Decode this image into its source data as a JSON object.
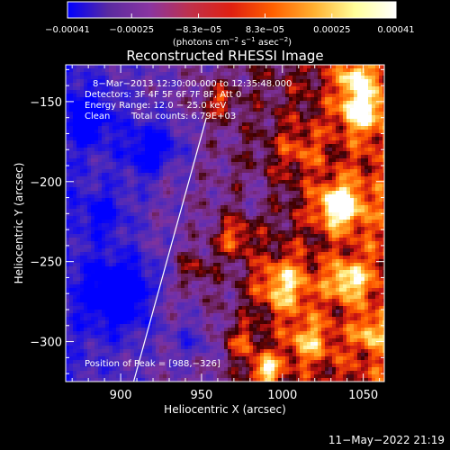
{
  "chart_data": {
    "type": "heatmap",
    "title": "Reconstructed RHESSI Image",
    "xlabel": "Heliocentric X (arcsec)",
    "ylabel": "Heliocentric Y (arcsec)",
    "xlim": [
      866,
      1063
    ],
    "ylim": [
      -325,
      -127
    ],
    "x_ticks": [
      900,
      950,
      1000,
      1050
    ],
    "y_ticks": [
      -300,
      -250,
      -200,
      -150
    ],
    "x_tick_labels": [
      "900",
      "950",
      "1000",
      "1050"
    ],
    "y_tick_labels": [
      "−300",
      "−250",
      "−200",
      "−150"
    ],
    "grid": false,
    "limb_line": [
      [
        908,
        -325
      ],
      [
        953,
        -160
      ]
    ],
    "colorbar": {
      "min": -0.00041,
      "max": 0.00041,
      "tick_values": [
        -0.00041,
        -0.00025,
        -8.3e-05,
        8.3e-05,
        0.00025,
        0.00041
      ],
      "tick_labels": [
        "−0.00041",
        "−0.00025",
        "−8.3e−05",
        "8.3e−05",
        "0.00025",
        "0.00041"
      ],
      "units_prefix": "(photons cm",
      "units_sup1": "−2",
      "units_mid": " s",
      "units_sup2": "−1",
      "units_mid2": " asec",
      "units_sup3": "−2",
      "units_suffix": ")",
      "palette": [
        "#0000ff",
        "#5a2aa0",
        "#8a35a0",
        "#c0304a",
        "#e02010",
        "#ff6000",
        "#ffb030",
        "#ffff9a",
        "#ffffff"
      ]
    },
    "peak": {
      "x": 988,
      "y": -326
    },
    "annotations": {
      "time_range": "8−Mar−2013 12:30:00.000 to 12:35:48.000",
      "detectors": "Detectors: 3F 4F 5F 6F 7F 8F, Att 0",
      "energy_range": "Energy Range: 12.0 − 25.0 keV",
      "clean_label": "Clean",
      "total_counts": "Total counts: 6.79E+03",
      "peak_position": "Position of Peak = [988,−326]"
    },
    "hotspots": [
      {
        "x": 1035,
        "y": -215,
        "amp": 1.0,
        "r": 14
      },
      {
        "x": 1048,
        "y": -155,
        "amp": 0.85,
        "r": 13
      },
      {
        "x": 1045,
        "y": -135,
        "amp": 0.7,
        "r": 10
      },
      {
        "x": 1000,
        "y": -265,
        "amp": 0.8,
        "r": 18
      },
      {
        "x": 990,
        "y": -318,
        "amp": 0.95,
        "r": 10
      },
      {
        "x": 1040,
        "y": -262,
        "amp": 0.75,
        "r": 12
      },
      {
        "x": 970,
        "y": -235,
        "amp": 0.6,
        "r": 12
      },
      {
        "x": 960,
        "y": -150,
        "amp": 0.55,
        "r": 10
      },
      {
        "x": 1010,
        "y": -180,
        "amp": 0.35,
        "r": 15
      },
      {
        "x": 945,
        "y": -255,
        "amp": 0.45,
        "r": 11
      },
      {
        "x": 925,
        "y": -275,
        "amp": 0.35,
        "r": 8
      },
      {
        "x": 1015,
        "y": -300,
        "amp": 0.6,
        "r": 15
      },
      {
        "x": 1055,
        "y": -295,
        "amp": 0.5,
        "r": 10
      },
      {
        "x": 975,
        "y": -300,
        "amp": 0.5,
        "r": 11
      },
      {
        "x": 930,
        "y": -195,
        "amp": 0.3,
        "r": 7
      }
    ],
    "coldspots": [
      {
        "x": 900,
        "y": -270,
        "amp": 1.0,
        "r": 22
      },
      {
        "x": 920,
        "y": -180,
        "amp": 0.8,
        "r": 18
      },
      {
        "x": 880,
        "y": -160,
        "amp": 0.7,
        "r": 16
      },
      {
        "x": 890,
        "y": -220,
        "amp": 0.5,
        "r": 14
      },
      {
        "x": 945,
        "y": -300,
        "amp": 0.4,
        "r": 12
      },
      {
        "x": 985,
        "y": -210,
        "amp": 0.25,
        "r": 9
      }
    ]
  },
  "footer": {
    "timestamp": "11−May−2022 21:19"
  }
}
